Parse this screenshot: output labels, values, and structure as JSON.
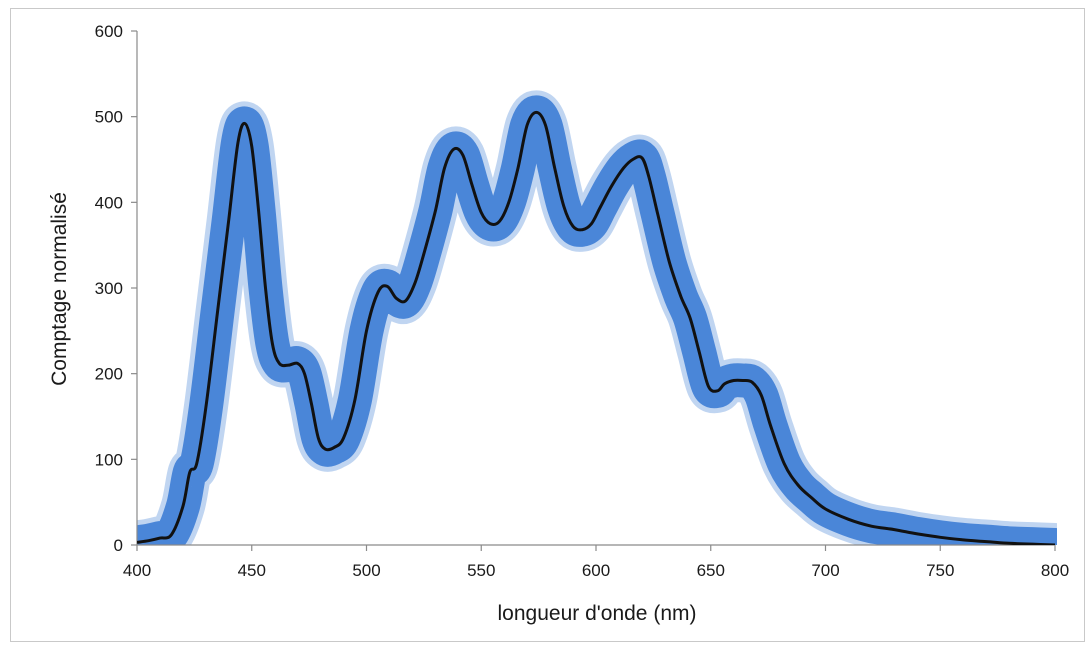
{
  "chart_data": {
    "type": "line",
    "title": "",
    "xlabel": "longueur d'onde (nm)",
    "ylabel": "Comptage normalisé",
    "xlim": [
      400,
      800
    ],
    "ylim": [
      0,
      600
    ],
    "x_ticks": [
      "400",
      "450",
      "500",
      "550",
      "600",
      "650",
      "700",
      "750",
      "800"
    ],
    "y_ticks": [
      "0",
      "100",
      "200",
      "300",
      "400",
      "500",
      "600"
    ],
    "grid": false,
    "legend": "none",
    "series": [
      {
        "line_color": "#111111",
        "band_color": "#4a86d8",
        "points": [
          [
            400,
            3
          ],
          [
            405,
            5
          ],
          [
            410,
            8
          ],
          [
            415,
            12
          ],
          [
            420,
            45
          ],
          [
            423,
            85
          ],
          [
            426,
            95
          ],
          [
            430,
            160
          ],
          [
            435,
            270
          ],
          [
            440,
            380
          ],
          [
            444,
            470
          ],
          [
            447,
            492
          ],
          [
            450,
            465
          ],
          [
            453,
            390
          ],
          [
            456,
            300
          ],
          [
            459,
            235
          ],
          [
            462,
            212
          ],
          [
            466,
            210
          ],
          [
            470,
            212
          ],
          [
            473,
            200
          ],
          [
            476,
            165
          ],
          [
            479,
            125
          ],
          [
            482,
            112
          ],
          [
            486,
            114
          ],
          [
            490,
            125
          ],
          [
            495,
            170
          ],
          [
            500,
            250
          ],
          [
            505,
            295
          ],
          [
            509,
            302
          ],
          [
            513,
            288
          ],
          [
            517,
            285
          ],
          [
            521,
            305
          ],
          [
            525,
            340
          ],
          [
            530,
            390
          ],
          [
            534,
            440
          ],
          [
            538,
            462
          ],
          [
            542,
            455
          ],
          [
            546,
            420
          ],
          [
            550,
            388
          ],
          [
            554,
            375
          ],
          [
            558,
            378
          ],
          [
            562,
            400
          ],
          [
            566,
            440
          ],
          [
            570,
            490
          ],
          [
            574,
            505
          ],
          [
            578,
            490
          ],
          [
            582,
            440
          ],
          [
            586,
            395
          ],
          [
            590,
            372
          ],
          [
            594,
            368
          ],
          [
            598,
            375
          ],
          [
            602,
            395
          ],
          [
            607,
            420
          ],
          [
            612,
            440
          ],
          [
            616,
            450
          ],
          [
            620,
            452
          ],
          [
            623,
            430
          ],
          [
            627,
            385
          ],
          [
            632,
            330
          ],
          [
            637,
            290
          ],
          [
            641,
            265
          ],
          [
            645,
            225
          ],
          [
            649,
            185
          ],
          [
            653,
            180
          ],
          [
            656,
            188
          ],
          [
            660,
            192
          ],
          [
            664,
            192
          ],
          [
            668,
            190
          ],
          [
            672,
            175
          ],
          [
            676,
            140
          ],
          [
            682,
            95
          ],
          [
            688,
            70
          ],
          [
            694,
            55
          ],
          [
            700,
            42
          ],
          [
            710,
            30
          ],
          [
            720,
            22
          ],
          [
            730,
            18
          ],
          [
            740,
            13
          ],
          [
            750,
            9
          ],
          [
            760,
            6
          ],
          [
            770,
            4
          ],
          [
            780,
            2
          ],
          [
            790,
            1
          ],
          [
            800,
            0
          ]
        ]
      }
    ]
  }
}
